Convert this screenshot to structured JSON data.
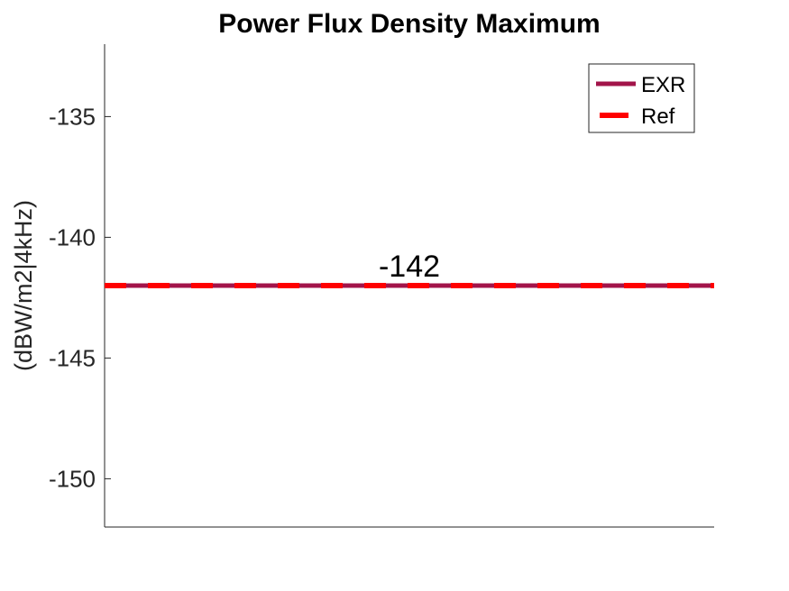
{
  "chart_data": {
    "type": "line",
    "title": "Power Flux Density Maximum",
    "xlabel": "",
    "ylabel": "(dBW/m2|4kHz)",
    "ylim": [
      -152,
      -132
    ],
    "yticks": [
      -135,
      -140,
      -145,
      -150
    ],
    "ytick_labels": [
      "-135",
      "-140",
      "-145",
      "-150"
    ],
    "x": [
      0,
      1
    ],
    "grid": false,
    "legend_position": "top-right",
    "series": [
      {
        "name": "EXR",
        "values": [
          -142,
          -142
        ],
        "color": "#A2144A",
        "style": "solid"
      },
      {
        "name": "Ref",
        "values": [
          -142,
          -142
        ],
        "color": "#FF0000",
        "style": "dashed"
      }
    ],
    "annotations": [
      {
        "text": "-142",
        "x": 0.5,
        "y": -142
      }
    ]
  }
}
